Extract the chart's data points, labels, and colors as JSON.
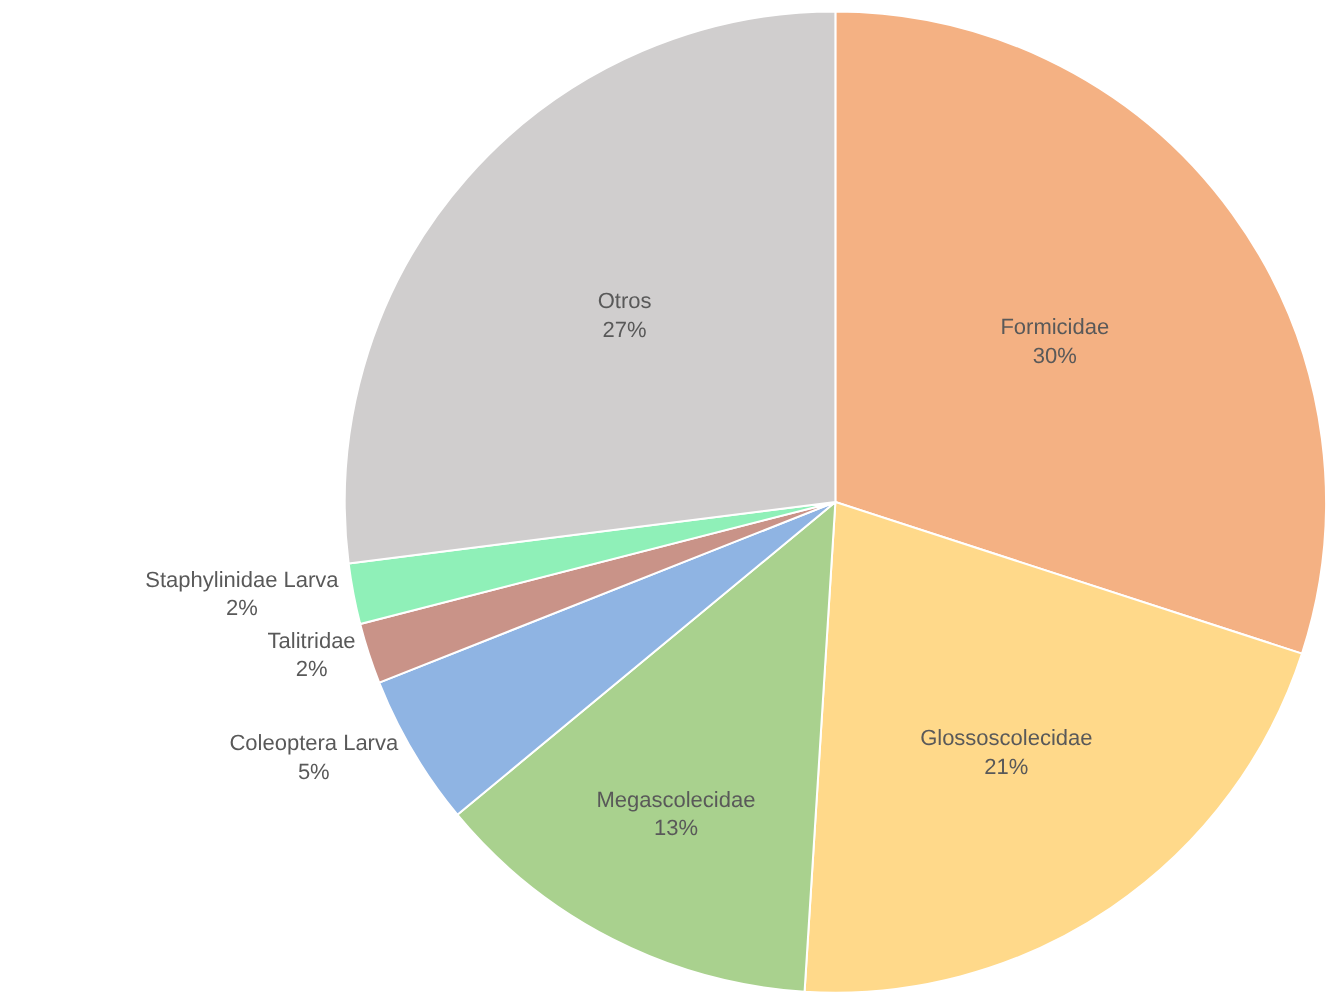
{
  "chart_data": {
    "type": "pie",
    "categories": [
      "Formicidae",
      "Glossoscolecidae",
      "Megascolecidae",
      "Coleoptera Larva",
      "Talitridae",
      "Staphylinidae Larva",
      "Otros"
    ],
    "values": [
      30,
      21,
      13,
      5,
      2,
      2,
      27
    ],
    "value_labels": [
      "30%",
      "21%",
      "13%",
      "5%",
      "2%",
      "2%",
      "27%"
    ],
    "colors": [
      "#f4b183",
      "#ffd98a",
      "#a9d18e",
      "#8fb4e3",
      "#c99388",
      "#8ff0b8",
      "#d0cece"
    ],
    "legend": false
  }
}
